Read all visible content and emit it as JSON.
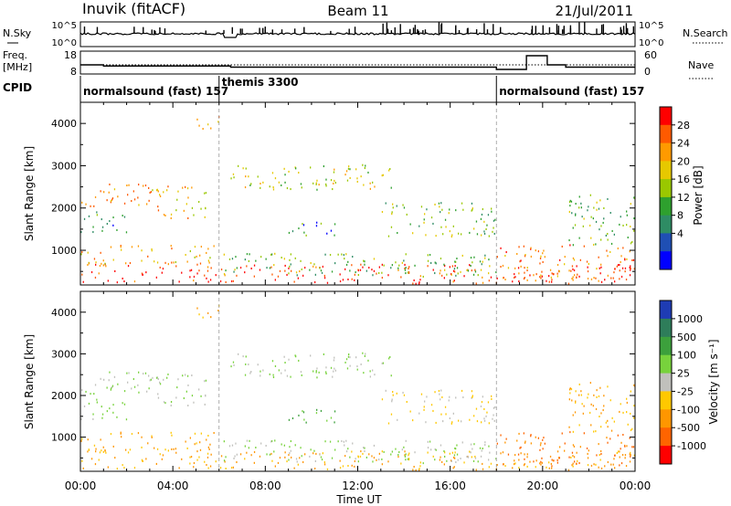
{
  "header": {
    "station": "Inuvik (fitACF)",
    "beam": "Beam 11",
    "date": "21/Jul/2011"
  },
  "noise_panel": {
    "left_label": "N.Sky",
    "left_ticks": [
      "10^5",
      "10^0"
    ],
    "right_ticks": [
      "10^5",
      "10^0"
    ],
    "right_label": "N.Search"
  },
  "freq_panel": {
    "left_label_1": "Freq.",
    "left_label_2": "[MHz]",
    "left_ticks": [
      "18",
      "8"
    ],
    "right_ticks": [
      "60",
      "0"
    ],
    "right_label": "Nave"
  },
  "cpid": {
    "label": "CPID",
    "segments": [
      {
        "text": "normalsound (fast) 157",
        "start_hour": 0
      },
      {
        "text": "themis 3300",
        "start_hour": 6
      },
      {
        "text": "normalsound (fast) 157",
        "start_hour": 18
      }
    ]
  },
  "axes": {
    "ylabel": "Slant Range [km]",
    "xlabel": "Time UT",
    "x_ticks": [
      "00:00",
      "04:00",
      "08:00",
      "12:00",
      "16:00",
      "20:00",
      "00:00"
    ],
    "y_ticks": [
      "1000",
      "2000",
      "3000",
      "4000"
    ]
  },
  "power_scale": {
    "label": "Power [dB]",
    "ticks": [
      "28",
      "24",
      "20",
      "16",
      "12",
      "8",
      "4"
    ],
    "colors": [
      "#ff0000",
      "#ff5a00",
      "#ff9a00",
      "#e6c800",
      "#9ac800",
      "#2ea02e",
      "#2e8c64",
      "#1f4fb4",
      "#0000ff"
    ]
  },
  "velocity_scale": {
    "label": "Velocity [m s⁻¹]",
    "ticks": [
      "1000",
      "500",
      "100",
      "25",
      "-25",
      "-100",
      "-500",
      "-1000"
    ],
    "colors": [
      "#1e3cb4",
      "#2e7d5a",
      "#3ca03c",
      "#78d23c",
      "#c0c0bc",
      "#ffc800",
      "#ff9600",
      "#ff6400",
      "#ff0000"
    ]
  },
  "chart_data": {
    "type": "heatmap",
    "title": "Inuvik (fitACF) Beam 11 21/Jul/2011",
    "xlabel": "Time UT",
    "ylabel": "Slant Range [km]",
    "xlim_hours": [
      0,
      24
    ],
    "ylim_km": [
      180,
      4500
    ],
    "panels": [
      "Power [dB]",
      "Velocity [m s-1]"
    ],
    "scatter_bands": [
      {
        "t0": 0,
        "t1": 24,
        "r0": 180,
        "r1": 650,
        "power": 28,
        "velocity": -100
      },
      {
        "t0": 0,
        "t1": 6,
        "r0": 650,
        "r1": 1100,
        "power": 20,
        "velocity": -100
      },
      {
        "t0": 0,
        "t1": 3,
        "r0": 2000,
        "r1": 2600,
        "power": 22,
        "velocity": 25
      },
      {
        "t0": 0,
        "t1": 2,
        "r0": 1400,
        "r1": 1900,
        "power": 8,
        "velocity": 25
      },
      {
        "t0": 3,
        "t1": 5.5,
        "r0": 1700,
        "r1": 2500,
        "power": 20,
        "velocity": 25
      },
      {
        "t0": 5,
        "t1": 6,
        "r0": 3800,
        "r1": 4200,
        "power": 20,
        "velocity": -100
      },
      {
        "t0": 6.5,
        "t1": 13.5,
        "r0": 2400,
        "r1": 3000,
        "power": 16,
        "velocity": 25
      },
      {
        "t0": 9,
        "t1": 11,
        "r0": 1300,
        "r1": 1700,
        "power": 8,
        "velocity": 100
      },
      {
        "t0": 13,
        "t1": 18,
        "r0": 1300,
        "r1": 2100,
        "power": 12,
        "velocity": -25
      },
      {
        "t0": 6,
        "t1": 18,
        "r0": 350,
        "r1": 900,
        "power": 12,
        "velocity": 25
      },
      {
        "t0": 18,
        "t1": 24,
        "r0": 250,
        "r1": 1100,
        "power": 24,
        "velocity": -500
      },
      {
        "t0": 21,
        "t1": 24,
        "r0": 1100,
        "r1": 2300,
        "power": 12,
        "velocity": -100
      }
    ],
    "freq_mhz": [
      {
        "t0": 0,
        "t1": 1,
        "v": 12
      },
      {
        "t0": 1,
        "t1": 6.5,
        "v": 11.5
      },
      {
        "t0": 6.5,
        "t1": 12,
        "v": 11
      },
      {
        "t0": 12,
        "t1": 18,
        "v": 11
      },
      {
        "t0": 18,
        "t1": 19.3,
        "v": 10
      },
      {
        "t0": 19.3,
        "t1": 20.2,
        "v": 16
      },
      {
        "t0": 20.2,
        "t1": 21,
        "v": 12
      },
      {
        "t0": 21,
        "t1": 24,
        "v": 11
      }
    ],
    "cpid_segments": [
      {
        "start_hour": 0,
        "end_hour": 6,
        "name": "normalsound (fast) 157"
      },
      {
        "start_hour": 6,
        "end_hour": 18,
        "name": "themis 3300"
      },
      {
        "start_hour": 18,
        "end_hour": 24,
        "name": "normalsound (fast) 157"
      }
    ]
  }
}
